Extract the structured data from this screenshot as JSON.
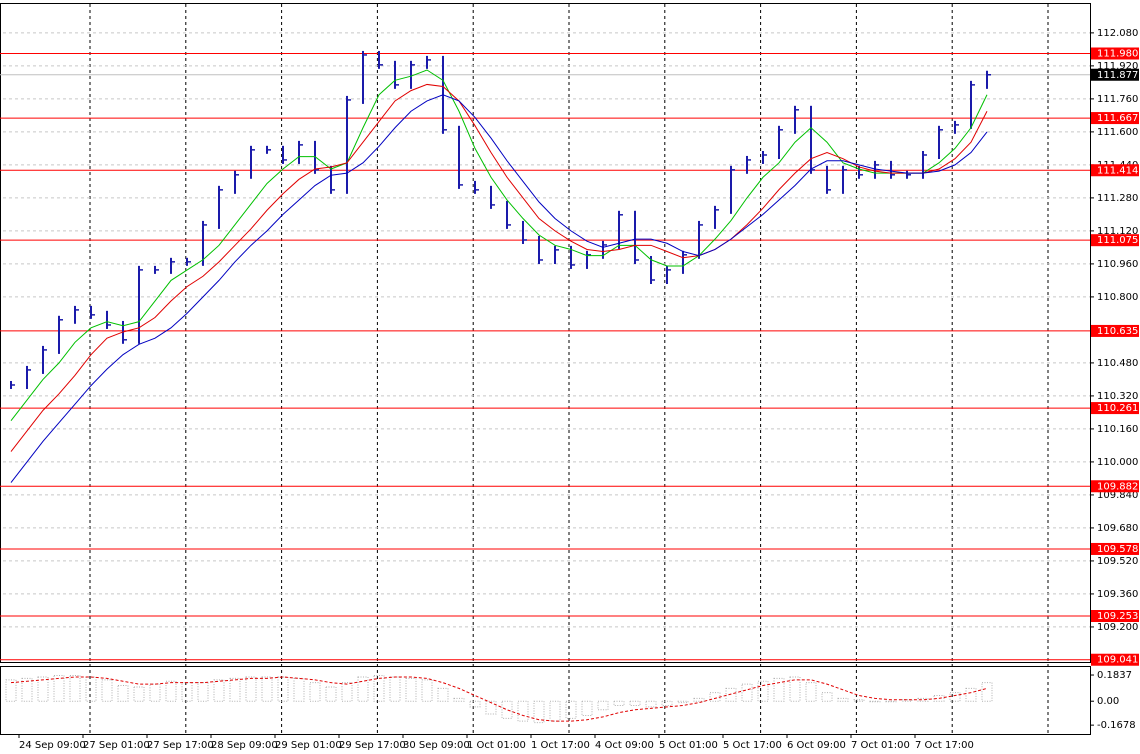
{
  "chart_data": [
    {
      "type": "price",
      "categories": [
        null,
        "24 Sep 09:00",
        null,
        null,
        null,
        "27 Sep 01:00",
        null,
        null,
        null,
        "27 Sep 17:00",
        null,
        null,
        null,
        "28 Sep 09:00",
        null,
        null,
        null,
        "29 Sep 01:00",
        null,
        null,
        null,
        "29 Sep 17:00",
        null,
        null,
        null,
        "30 Sep 09:00",
        null,
        null,
        null,
        "1 Oct 01:00",
        null,
        null,
        null,
        "1 Oct 17:00",
        null,
        null,
        null,
        "4 Oct 09:00",
        null,
        null,
        null,
        "5 Oct 01:00",
        null,
        null,
        null,
        "5 Oct 17:00",
        null,
        null,
        null,
        "6 Oct 09:00",
        null,
        null,
        null,
        "7 Oct 01:00",
        null,
        null,
        null,
        "7 Oct 17:00",
        null,
        null,
        null,
        null
      ],
      "series": [
        {
          "style": "bars",
          "color": "#1a1aaa",
          "values": [
            110.373,
            110.446,
            110.543,
            110.689,
            110.737,
            110.713,
            110.664,
            110.592,
            110.931,
            110.931,
            110.97,
            110.97,
            111.149,
            111.319,
            111.392,
            111.513,
            111.513,
            111.464,
            111.537,
            111.416,
            111.319,
            111.755,
            111.973,
            111.925,
            111.828,
            111.925,
            111.949,
            111.61,
            111.343,
            111.319,
            111.246,
            111.149,
            111.076,
            110.979,
            111.028,
            110.955,
            111.004,
            111.052,
            111.198,
            110.979,
            110.882,
            110.931,
            111.004,
            111.149,
            111.222,
            111.416,
            111.464,
            111.488,
            111.61,
            111.707,
            111.416,
            111.319,
            111.416,
            111.392,
            111.44,
            111.392,
            111.392,
            111.488,
            111.61,
            111.634,
            111.828,
            111.877
          ]
        },
        {
          "style": "line",
          "color": "#00c000",
          "values": [
            110.2,
            110.3,
            110.4,
            110.48,
            110.58,
            110.65,
            110.68,
            110.66,
            110.68,
            110.78,
            110.88,
            110.93,
            110.98,
            111.05,
            111.15,
            111.25,
            111.35,
            111.42,
            111.48,
            111.48,
            111.42,
            111.45,
            111.62,
            111.78,
            111.85,
            111.87,
            111.9,
            111.85,
            111.7,
            111.52,
            111.38,
            111.27,
            111.18,
            111.1,
            111.05,
            111.03,
            111.0,
            111.0,
            111.05,
            111.05,
            110.98,
            110.95,
            110.95,
            111.0,
            111.08,
            111.17,
            111.28,
            111.38,
            111.45,
            111.55,
            111.62,
            111.55,
            111.45,
            111.42,
            111.4,
            111.4,
            111.4,
            111.4,
            111.45,
            111.52,
            111.62,
            111.78
          ]
        },
        {
          "style": "line",
          "color": "#e00000",
          "values": [
            110.05,
            110.15,
            110.25,
            110.33,
            110.42,
            110.52,
            110.6,
            110.63,
            110.65,
            110.7,
            110.78,
            110.85,
            110.9,
            110.97,
            111.05,
            111.13,
            111.22,
            111.3,
            111.37,
            111.42,
            111.43,
            111.45,
            111.55,
            111.65,
            111.75,
            111.8,
            111.83,
            111.82,
            111.75,
            111.63,
            111.5,
            111.38,
            111.28,
            111.18,
            111.12,
            111.07,
            111.03,
            111.02,
            111.03,
            111.05,
            111.05,
            111.02,
            110.99,
            111.0,
            111.03,
            111.08,
            111.15,
            111.23,
            111.32,
            111.4,
            111.47,
            111.5,
            111.47,
            111.43,
            111.41,
            111.4,
            111.4,
            111.4,
            111.42,
            111.47,
            111.55,
            111.7
          ]
        },
        {
          "style": "line",
          "color": "#0000c0",
          "values": [
            109.9,
            110.0,
            110.1,
            110.19,
            110.28,
            110.37,
            110.45,
            110.52,
            110.57,
            110.6,
            110.65,
            110.72,
            110.8,
            110.88,
            110.97,
            111.05,
            111.12,
            111.2,
            111.27,
            111.34,
            111.39,
            111.4,
            111.45,
            111.53,
            111.62,
            111.7,
            111.75,
            111.78,
            111.75,
            111.67,
            111.57,
            111.46,
            111.36,
            111.26,
            111.18,
            111.12,
            111.07,
            111.04,
            111.06,
            111.08,
            111.08,
            111.06,
            111.02,
            111.0,
            111.03,
            111.08,
            111.14,
            111.2,
            111.27,
            111.34,
            111.42,
            111.46,
            111.46,
            111.44,
            111.42,
            111.41,
            111.4,
            111.4,
            111.41,
            111.44,
            111.5,
            111.6
          ]
        }
      ],
      "ylim": [
        109.03,
        112.22
      ],
      "yticks": [
        {
          "value": 112.08,
          "label": "112.080"
        },
        {
          "value": 111.92,
          "label": "111.920"
        },
        {
          "value": 111.76,
          "label": "111.760"
        },
        {
          "value": 111.6,
          "label": "111.600"
        },
        {
          "value": 111.44,
          "label": "111.440"
        },
        {
          "value": 111.28,
          "label": "111.280"
        },
        {
          "value": 111.12,
          "label": "111.120"
        },
        {
          "value": 110.96,
          "label": "110.960"
        },
        {
          "value": 110.8,
          "label": "110.800"
        },
        {
          "value": 110.48,
          "label": "110.480"
        },
        {
          "value": 110.32,
          "label": "110.320"
        },
        {
          "value": 110.16,
          "label": "110.160"
        },
        {
          "value": 110,
          "label": "110.000"
        },
        {
          "value": 109.84,
          "label": "109.840"
        },
        {
          "value": 109.68,
          "label": "109.680"
        },
        {
          "value": 109.52,
          "label": "109.520"
        },
        {
          "value": 109.36,
          "label": "109.360"
        },
        {
          "value": 109.2,
          "label": "109.200"
        }
      ],
      "levels": [
        {
          "value": 111.98,
          "label": "111.980"
        },
        111.667,
        111.414,
        111.075,
        110.635,
        110.261,
        109.882,
        109.578,
        109.253,
        109.041
      ],
      "level_color": "#ff0000",
      "current": 111.877,
      "grid": true
    },
    {
      "type": "oscillator",
      "series": [
        {
          "style": "histogram",
          "color": "#b0b0b0",
          "values": [
            0.15,
            0.16,
            0.17,
            0.18,
            0.18,
            0.17,
            0.15,
            0.11,
            0.1,
            0.12,
            0.14,
            0.13,
            0.13,
            0.15,
            0.16,
            0.17,
            0.17,
            0.17,
            0.16,
            0.13,
            0.1,
            0.13,
            0.17,
            0.18,
            0.17,
            0.16,
            0.15,
            0.09,
            0.02,
            -0.04,
            -0.09,
            -0.12,
            -0.14,
            -0.15,
            -0.14,
            -0.12,
            -0.1,
            -0.06,
            -0.03,
            -0.03,
            -0.04,
            -0.03,
            -0.01,
            0.02,
            0.06,
            0.09,
            0.12,
            0.14,
            0.16,
            0.17,
            0.13,
            0.06,
            0.02,
            0.01,
            0.0,
            0.0,
            0.01,
            0.02,
            0.04,
            0.06,
            0.09,
            0.13
          ]
        },
        {
          "style": "dotted",
          "color": "#e00000",
          "values": [
            0.13,
            0.14,
            0.15,
            0.16,
            0.17,
            0.17,
            0.16,
            0.14,
            0.12,
            0.12,
            0.13,
            0.13,
            0.13,
            0.14,
            0.15,
            0.16,
            0.16,
            0.17,
            0.16,
            0.15,
            0.13,
            0.12,
            0.14,
            0.16,
            0.17,
            0.17,
            0.16,
            0.13,
            0.09,
            0.04,
            -0.01,
            -0.06,
            -0.1,
            -0.13,
            -0.14,
            -0.14,
            -0.13,
            -0.11,
            -0.08,
            -0.06,
            -0.05,
            -0.04,
            -0.03,
            -0.01,
            0.02,
            0.05,
            0.08,
            0.11,
            0.13,
            0.15,
            0.15,
            0.12,
            0.08,
            0.04,
            0.02,
            0.01,
            0.01,
            0.01,
            0.02,
            0.04,
            0.06,
            0.09
          ]
        }
      ],
      "ylim": [
        -0.23,
        0.24
      ],
      "yticks": [
        0.1837,
        {
          "value": 0,
          "label": "0.00"
        },
        -0.1678
      ]
    }
  ]
}
